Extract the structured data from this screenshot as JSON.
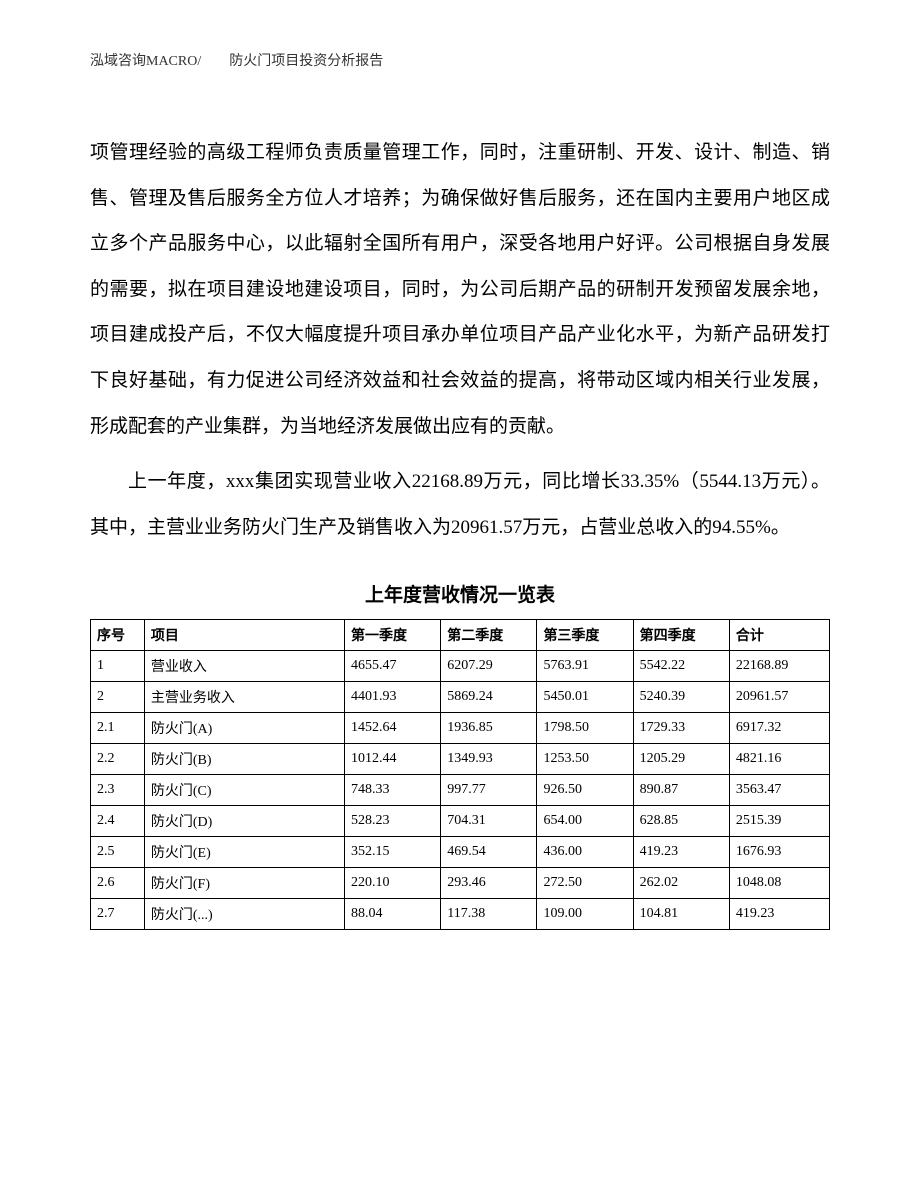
{
  "header": {
    "text": "泓域咨询MACRO/　　防火门项目投资分析报告"
  },
  "paragraphs": {
    "p1": "项管理经验的高级工程师负责质量管理工作，同时，注重研制、开发、设计、制造、销售、管理及售后服务全方位人才培养；为确保做好售后服务，还在国内主要用户地区成立多个产品服务中心，以此辐射全国所有用户，深受各地用户好评。公司根据自身发展的需要，拟在项目建设地建设项目，同时，为公司后期产品的研制开发预留发展余地，项目建成投产后，不仅大幅度提升项目承办单位项目产品产业化水平，为新产品研发打下良好基础，有力促进公司经济效益和社会效益的提高，将带动区域内相关行业发展，形成配套的产业集群，为当地经济发展做出应有的贡献。",
    "p2": "上一年度，xxx集团实现营业收入22168.89万元，同比增长33.35%（5544.13万元）。其中，主营业业务防火门生产及销售收入为20961.57万元，占营业总收入的94.55%。"
  },
  "table": {
    "title": "上年度营收情况一览表",
    "columns": {
      "seq": "序号",
      "item": "项目",
      "q1": "第一季度",
      "q2": "第二季度",
      "q3": "第三季度",
      "q4": "第四季度",
      "total": "合计"
    },
    "rows": [
      {
        "seq": "1",
        "item": "营业收入",
        "q1": "4655.47",
        "q2": "6207.29",
        "q3": "5763.91",
        "q4": "5542.22",
        "total": "22168.89"
      },
      {
        "seq": "2",
        "item": "主营业务收入",
        "q1": "4401.93",
        "q2": "5869.24",
        "q3": "5450.01",
        "q4": "5240.39",
        "total": "20961.57"
      },
      {
        "seq": "2.1",
        "item": "防火门(A)",
        "q1": "1452.64",
        "q2": "1936.85",
        "q3": "1798.50",
        "q4": "1729.33",
        "total": "6917.32"
      },
      {
        "seq": "2.2",
        "item": "防火门(B)",
        "q1": "1012.44",
        "q2": "1349.93",
        "q3": "1253.50",
        "q4": "1205.29",
        "total": "4821.16"
      },
      {
        "seq": "2.3",
        "item": "防火门(C)",
        "q1": "748.33",
        "q2": "997.77",
        "q3": "926.50",
        "q4": "890.87",
        "total": "3563.47"
      },
      {
        "seq": "2.4",
        "item": "防火门(D)",
        "q1": "528.23",
        "q2": "704.31",
        "q3": "654.00",
        "q4": "628.85",
        "total": "2515.39"
      },
      {
        "seq": "2.5",
        "item": "防火门(E)",
        "q1": "352.15",
        "q2": "469.54",
        "q3": "436.00",
        "q4": "419.23",
        "total": "1676.93"
      },
      {
        "seq": "2.6",
        "item": "防火门(F)",
        "q1": "220.10",
        "q2": "293.46",
        "q3": "272.50",
        "q4": "262.02",
        "total": "1048.08"
      },
      {
        "seq": "2.7",
        "item": "防火门(...)",
        "q1": "88.04",
        "q2": "117.38",
        "q3": "109.00",
        "q4": "104.81",
        "total": "419.23"
      }
    ]
  }
}
